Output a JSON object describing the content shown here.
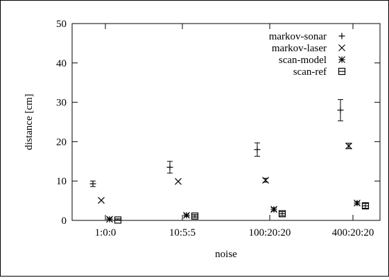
{
  "chart_data": {
    "type": "scatter",
    "title": "",
    "xlabel": "noise",
    "ylabel": "distance [cm]",
    "categories": [
      "1:0:0",
      "10:5:5",
      "100:20:20",
      "400:20:20"
    ],
    "ylim": [
      0,
      50
    ],
    "yticks": [
      0,
      10,
      20,
      30,
      40,
      50
    ],
    "grid": false,
    "legend_position": "top-right",
    "series": [
      {
        "name": "markov-sonar",
        "marker": "plus",
        "values": [
          9.3,
          13.5,
          18.0,
          28.0
        ],
        "err_low": [
          8.6,
          12.0,
          16.3,
          25.3
        ],
        "err_high": [
          10.0,
          15.0,
          19.7,
          30.7
        ]
      },
      {
        "name": "markov-laser",
        "marker": "cross",
        "values": [
          5.1,
          9.9,
          10.2,
          18.9
        ],
        "err_low": [
          5.1,
          9.9,
          9.7,
          18.2
        ],
        "err_high": [
          5.1,
          9.9,
          10.7,
          19.6
        ]
      },
      {
        "name": "scan-model",
        "marker": "star",
        "values": [
          0.3,
          1.3,
          2.8,
          4.4
        ],
        "err_low": [
          0.0,
          1.0,
          2.4,
          4.0
        ],
        "err_high": [
          0.6,
          1.6,
          3.2,
          4.8
        ]
      },
      {
        "name": "scan-ref",
        "marker": "box",
        "values": [
          0.1,
          1.1,
          1.7,
          3.7
        ],
        "err_low": [
          0.0,
          0.7,
          1.2,
          3.1
        ],
        "err_high": [
          0.4,
          1.5,
          2.2,
          4.3
        ]
      }
    ]
  }
}
